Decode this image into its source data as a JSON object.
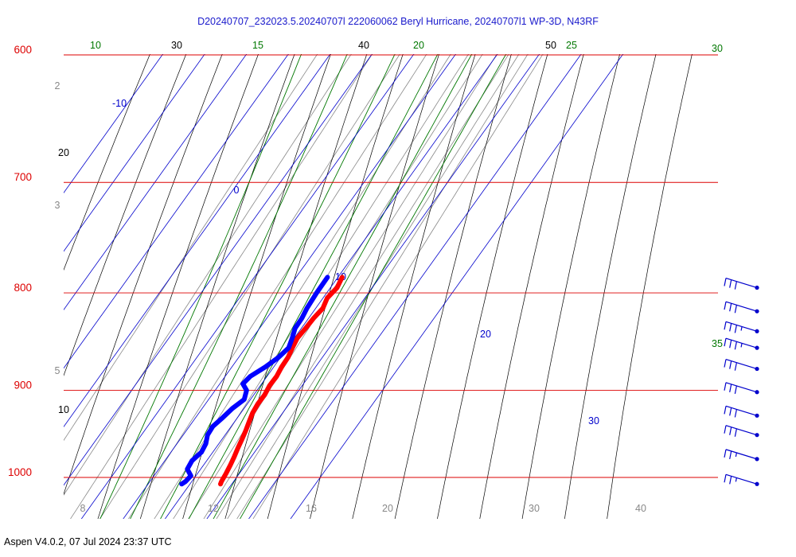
{
  "chart_data": {
    "type": "skew-t",
    "title": "D20240707_232023.5.20240707l 222060062 Beryl Hurricane, 20240707l1 WP-3D, N43RF",
    "footer": "Aspen V4.0.2, 07 Jul 2024  23:37 UTC",
    "colors": {
      "title": "#1a1acc",
      "isobar": "#dd0000",
      "isotherm": "#0000cc",
      "dry_adiabat": "#000000",
      "moist_adiabat": "#007700",
      "mixing_ratio": "#888888",
      "temperature": "#ff0000",
      "dewpoint": "#0000ff",
      "wind_barb": "#0000cc"
    },
    "pressure_axis": {
      "ticks": [
        600,
        700,
        800,
        900,
        1000
      ],
      "tick_labels": [
        "600",
        "700",
        "800",
        "900",
        "1000"
      ]
    },
    "isotherms": {
      "values": [
        -10,
        0,
        10,
        20,
        30
      ],
      "labels": [
        "-10",
        "0",
        "10",
        "20",
        "30"
      ]
    },
    "dry_adiabats": {
      "labels": [
        {
          "text": "30",
          "pos": "top"
        },
        {
          "text": "40",
          "pos": "top"
        },
        {
          "text": "50",
          "pos": "top"
        },
        {
          "text": "20",
          "pos": "left"
        },
        {
          "text": "10",
          "pos": "left"
        }
      ]
    },
    "moist_adiabats": {
      "labels": [
        "10",
        "15",
        "20",
        "25",
        "30",
        "35"
      ]
    },
    "mixing_ratio": {
      "bottom_labels": [
        "8",
        "12",
        "16",
        "20",
        "30",
        "40"
      ],
      "left_labels": [
        "2",
        "3",
        "5"
      ]
    },
    "temperature_profile": [
      {
        "p": 785,
        "t": 21.0
      },
      {
        "p": 795,
        "t": 21.6
      },
      {
        "p": 805,
        "t": 21.0
      },
      {
        "p": 815,
        "t": 21.7
      },
      {
        "p": 825,
        "t": 21.2
      },
      {
        "p": 835,
        "t": 21.0
      },
      {
        "p": 845,
        "t": 20.7
      },
      {
        "p": 855,
        "t": 21.2
      },
      {
        "p": 865,
        "t": 21.8
      },
      {
        "p": 875,
        "t": 21.9
      },
      {
        "p": 885,
        "t": 22.3
      },
      {
        "p": 895,
        "t": 22.2
      },
      {
        "p": 905,
        "t": 22.6
      },
      {
        "p": 915,
        "t": 22.5
      },
      {
        "p": 925,
        "t": 22.8
      },
      {
        "p": 935,
        "t": 23.5
      },
      {
        "p": 945,
        "t": 24.2
      },
      {
        "p": 955,
        "t": 24.8
      },
      {
        "p": 965,
        "t": 25.3
      },
      {
        "p": 975,
        "t": 25.9
      },
      {
        "p": 985,
        "t": 26.4
      },
      {
        "p": 995,
        "t": 26.8
      },
      {
        "p": 1005,
        "t": 27.1
      },
      {
        "p": 1008,
        "t": 27.3
      }
    ],
    "dewpoint_profile": [
      {
        "p": 785,
        "td": 17.5
      },
      {
        "p": 800,
        "td": 17.6
      },
      {
        "p": 815,
        "td": 17.9
      },
      {
        "p": 825,
        "td": 18.4
      },
      {
        "p": 835,
        "td": 18.5
      },
      {
        "p": 845,
        "td": 19.5
      },
      {
        "p": 855,
        "td": 20.3
      },
      {
        "p": 865,
        "td": 19.5
      },
      {
        "p": 875,
        "td": 18.0
      },
      {
        "p": 885,
        "td": 16.0
      },
      {
        "p": 893,
        "td": 15.5
      },
      {
        "p": 900,
        "td": 17.5
      },
      {
        "p": 910,
        "td": 18.5
      },
      {
        "p": 920,
        "td": 17.2
      },
      {
        "p": 930,
        "td": 16.5
      },
      {
        "p": 940,
        "td": 15.6
      },
      {
        "p": 950,
        "td": 15.8
      },
      {
        "p": 960,
        "td": 16.9
      },
      {
        "p": 970,
        "td": 17.3
      },
      {
        "p": 980,
        "td": 16.5
      },
      {
        "p": 990,
        "td": 16.8
      },
      {
        "p": 998,
        "td": 18.8
      },
      {
        "p": 1005,
        "td": 18.5
      },
      {
        "p": 1008,
        "td": 18.0
      }
    ],
    "wind_barbs": [
      {
        "p": 795,
        "speed": 30
      },
      {
        "p": 818,
        "speed": 30
      },
      {
        "p": 838,
        "speed": 35
      },
      {
        "p": 855,
        "speed": 35
      },
      {
        "p": 877,
        "speed": 30
      },
      {
        "p": 902,
        "speed": 30
      },
      {
        "p": 928,
        "speed": 30
      },
      {
        "p": 950,
        "speed": 30
      },
      {
        "p": 978,
        "speed": 25
      },
      {
        "p": 1008,
        "speed": 25
      }
    ]
  }
}
